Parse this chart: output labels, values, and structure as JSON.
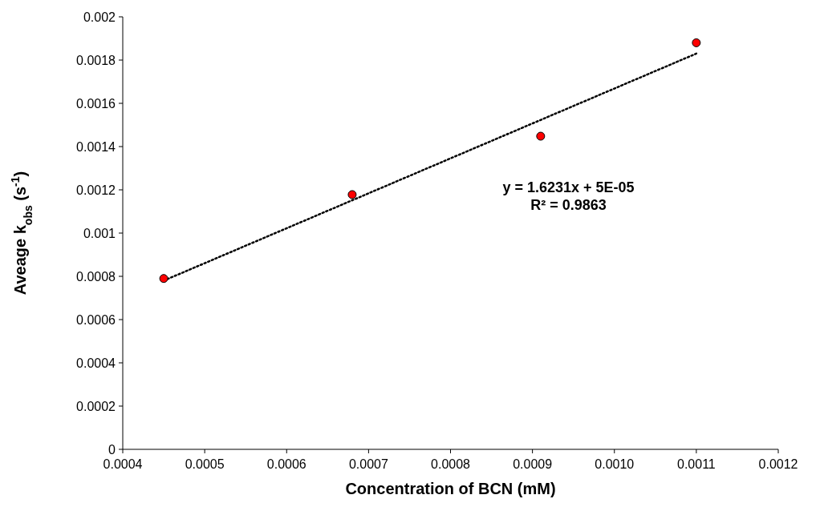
{
  "chart_data": {
    "type": "scatter",
    "xlabel": "Concentration of BCN (mM)",
    "ylabel": "Aveage k$_{obs}$ (s$^{-1}$)",
    "xlim": [
      0.0004,
      0.0012
    ],
    "xticks": [
      0.0004,
      0.0005,
      0.0006,
      0.0007,
      0.0008,
      0.0009,
      {
        "value": 0.001,
        "label": "0.0010"
      },
      {
        "value": 0.0011,
        "label": "0.0011"
      },
      {
        "value": 0.0012,
        "label": "0.0012"
      }
    ],
    "ylim": [
      0,
      0.002
    ],
    "yticks": [
      0,
      0.0002,
      0.0004,
      0.0006,
      0.0008,
      0.001,
      0.0012,
      0.0014,
      0.0016,
      0.0018,
      0.002
    ],
    "grid": false,
    "series": [
      {
        "type": "line",
        "color": "#000000",
        "line_style": "dotted",
        "marker": "none",
        "x": [
          0.00045,
          0.0011
        ],
        "values": [
          0.00078,
          0.00183
        ]
      },
      {
        "type": "scatter",
        "color": "#ff0000",
        "marker": "circle",
        "x": [
          0.00045,
          0.00068,
          0.00091,
          0.0011
        ],
        "values": [
          0.00079,
          0.001178,
          0.001448,
          0.00188
        ]
      }
    ],
    "annotations": [
      "y = 1.6231x + 5E-05",
      "R² = 0.9863"
    ]
  }
}
